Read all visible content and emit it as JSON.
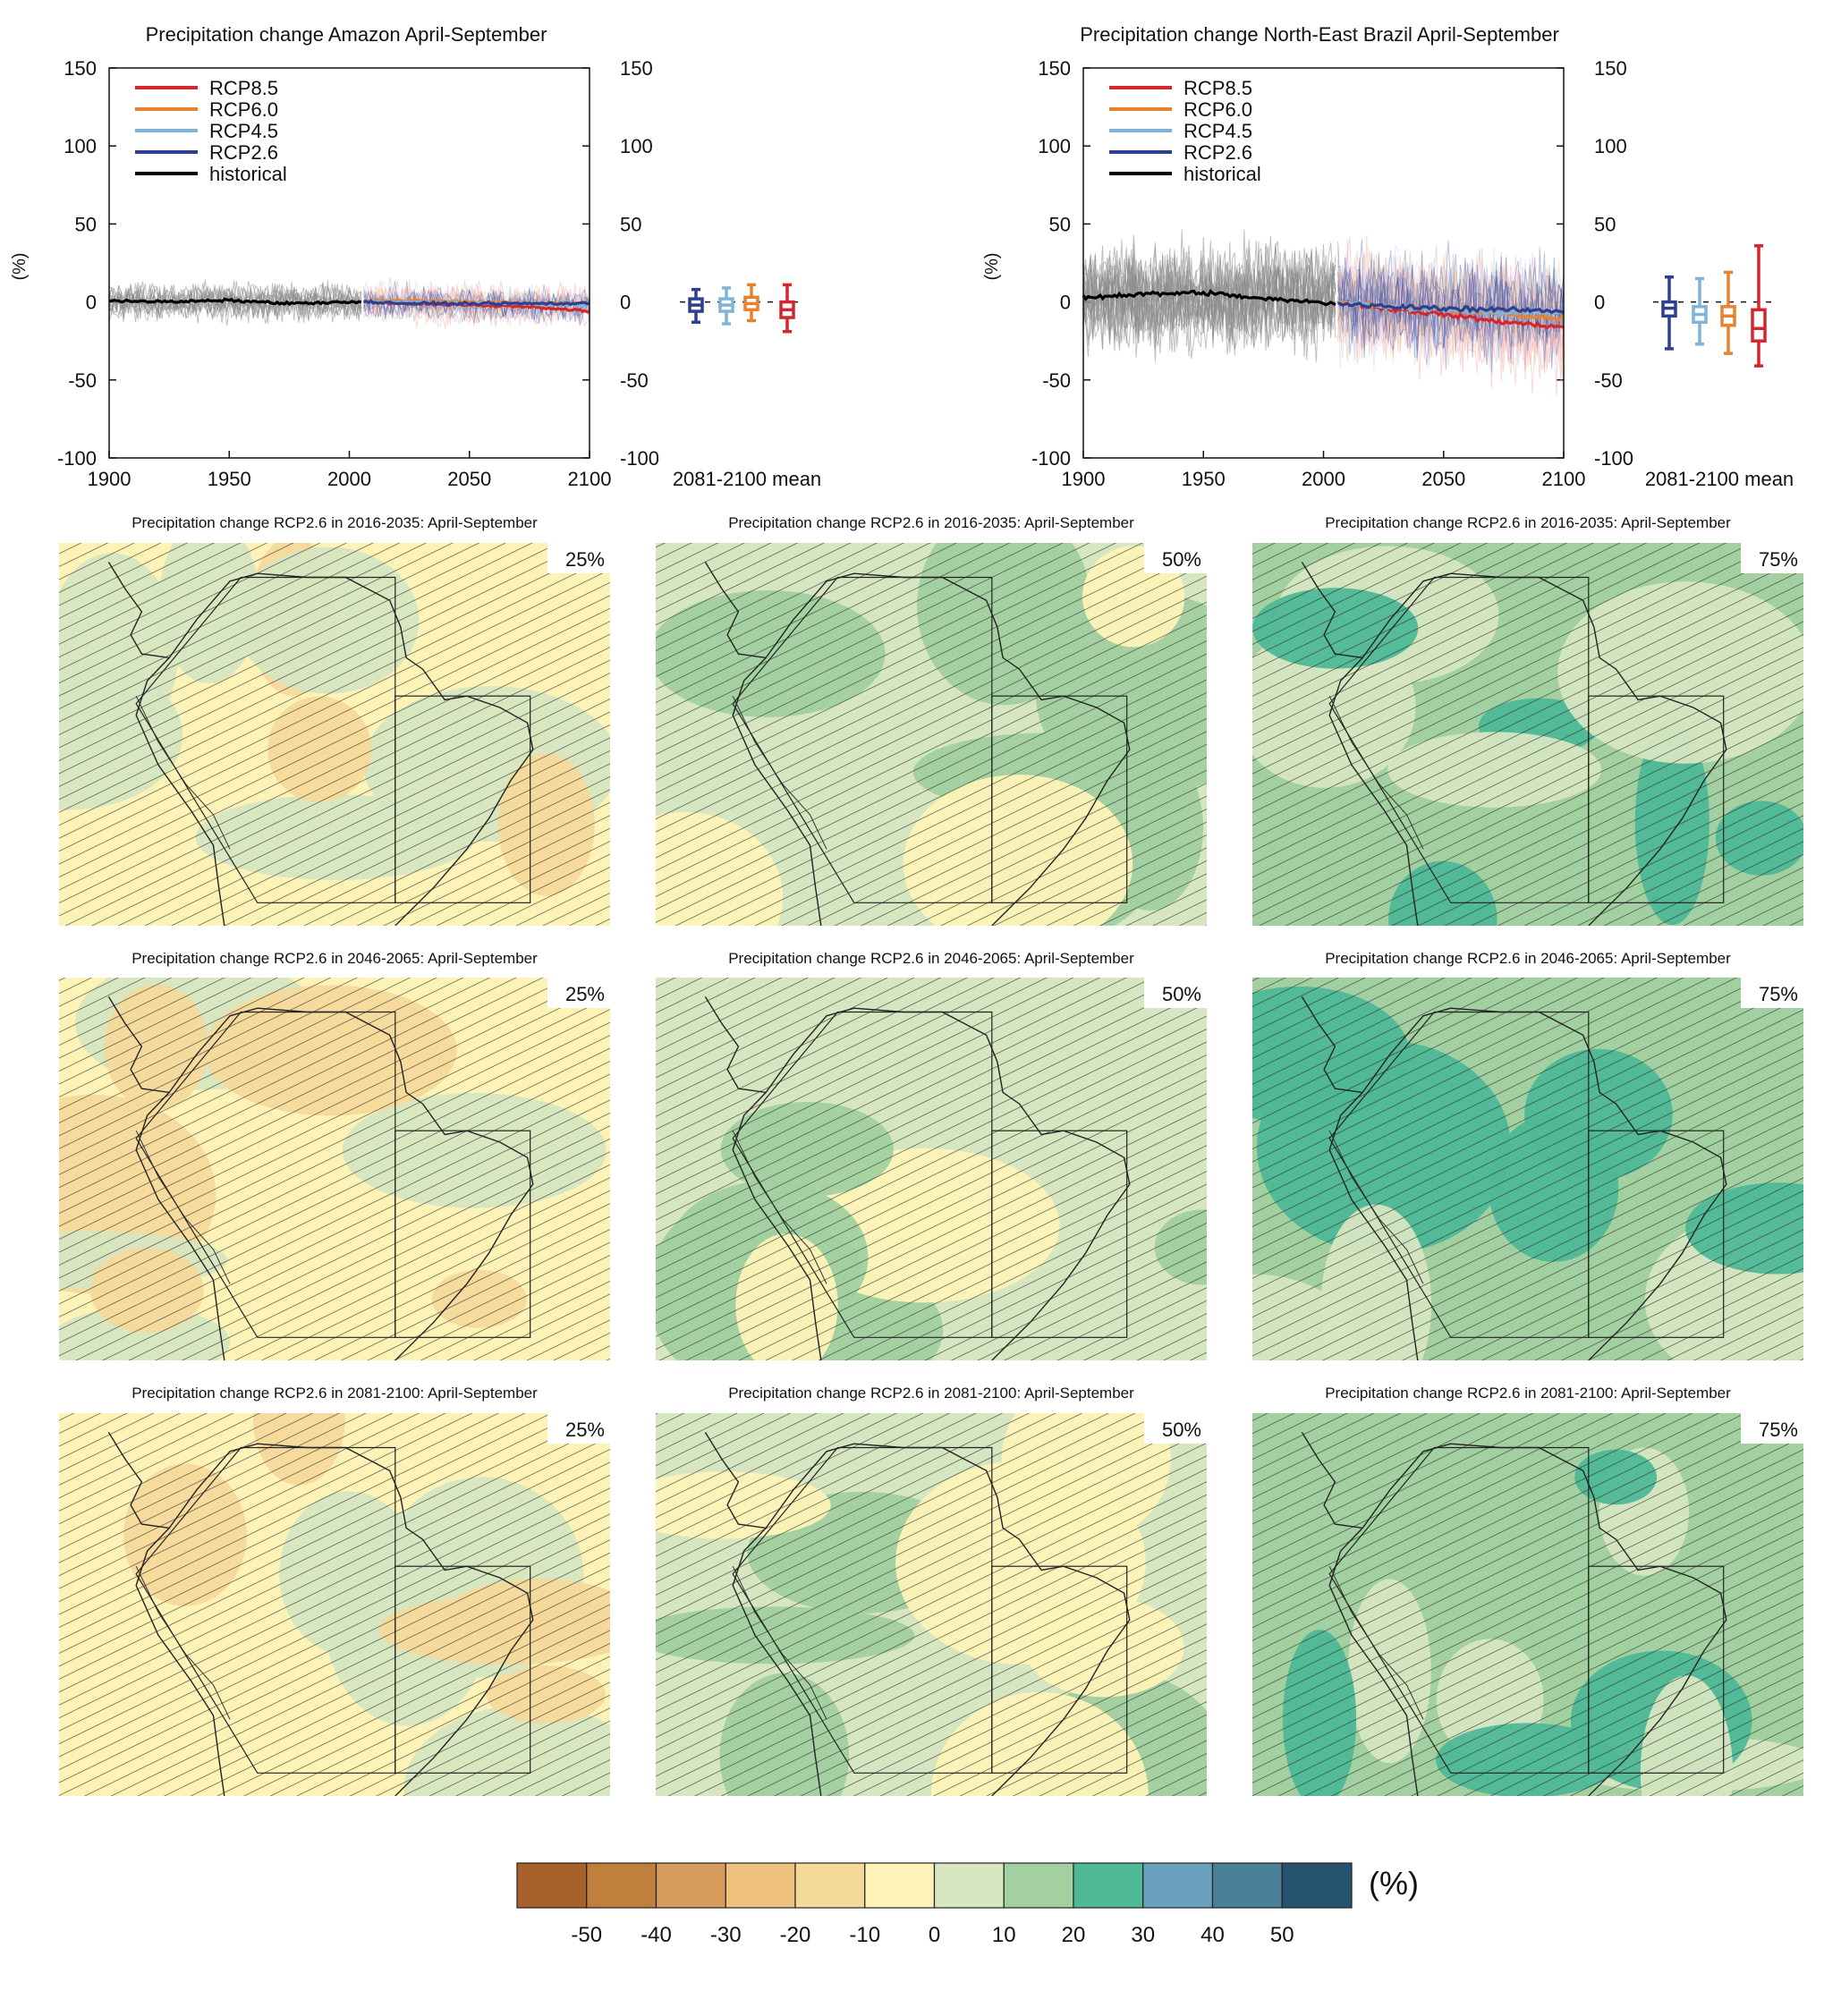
{
  "chart_data": [
    {
      "type": "line",
      "id": "ts_amazon",
      "title": "Precipitation change Amazon April-September",
      "ylabel": "(%)",
      "xlim": [
        1900,
        2100
      ],
      "ylim": [
        -100,
        150
      ],
      "x_ticks": [
        "1900",
        "1950",
        "2000",
        "2050",
        "2100"
      ],
      "y_ticks": [
        "150",
        "100",
        "50",
        "0",
        "-50",
        "-100"
      ],
      "legend_position": "top-left",
      "series": [
        {
          "name": "RCP8.5",
          "color": "#d7262b",
          "x": [
            2006,
            2025,
            2050,
            2075,
            2100
          ],
          "values": [
            0,
            -1,
            -2,
            -3,
            -6
          ]
        },
        {
          "name": "RCP6.0",
          "color": "#e8822f",
          "x": [
            2006,
            2025,
            2050,
            2075,
            2100
          ],
          "values": [
            0,
            1,
            0,
            -1,
            -1
          ]
        },
        {
          "name": "RCP4.5",
          "color": "#7fb3d8",
          "x": [
            2006,
            2025,
            2050,
            2075,
            2100
          ],
          "values": [
            0,
            0,
            -1,
            -1,
            -2
          ]
        },
        {
          "name": "RCP2.6",
          "color": "#2f3f8f",
          "x": [
            2006,
            2025,
            2050,
            2075,
            2100
          ],
          "values": [
            0,
            -1,
            -1,
            -1,
            -1
          ]
        },
        {
          "name": "historical",
          "color": "#000000",
          "x": [
            1900,
            1925,
            1950,
            1975,
            2005
          ],
          "values": [
            1,
            0,
            1,
            -1,
            0
          ]
        }
      ],
      "box_label": "2081-2100 mean",
      "boxes": [
        {
          "name": "RCP2.6",
          "color": "#2f3f8f",
          "whisker": [
            -13,
            8
          ],
          "box": [
            -6,
            2
          ],
          "median": -2
        },
        {
          "name": "RCP4.5",
          "color": "#7fb3d8",
          "whisker": [
            -14,
            9
          ],
          "box": [
            -6,
            2
          ],
          "median": -2
        },
        {
          "name": "RCP6.0",
          "color": "#e8822f",
          "whisker": [
            -12,
            11
          ],
          "box": [
            -5,
            3
          ],
          "median": -1
        },
        {
          "name": "RCP8.5",
          "color": "#d7262b",
          "whisker": [
            -19,
            11
          ],
          "box": [
            -10,
            0
          ],
          "median": -5
        }
      ]
    },
    {
      "type": "line",
      "id": "ts_nebrazil",
      "title": "Precipitation change North-East Brazil April-September",
      "ylabel": "(%)",
      "xlim": [
        1900,
        2100
      ],
      "ylim": [
        -100,
        150
      ],
      "x_ticks": [
        "1900",
        "1950",
        "2000",
        "2050",
        "2100"
      ],
      "y_ticks": [
        "150",
        "100",
        "50",
        "0",
        "-50",
        "-100"
      ],
      "legend_position": "top-left",
      "series": [
        {
          "name": "RCP8.5",
          "color": "#d7262b",
          "x": [
            2006,
            2025,
            2050,
            2075,
            2100
          ],
          "values": [
            0,
            -4,
            -8,
            -13,
            -16
          ]
        },
        {
          "name": "RCP6.0",
          "color": "#e8822f",
          "x": [
            2006,
            2025,
            2050,
            2075,
            2100
          ],
          "values": [
            0,
            -3,
            -5,
            -8,
            -11
          ]
        },
        {
          "name": "RCP4.5",
          "color": "#7fb3d8",
          "x": [
            2006,
            2025,
            2050,
            2075,
            2100
          ],
          "values": [
            0,
            -3,
            -5,
            -7,
            -7
          ]
        },
        {
          "name": "RCP2.6",
          "color": "#2f3f8f",
          "x": [
            2006,
            2025,
            2050,
            2075,
            2100
          ],
          "values": [
            -1,
            -3,
            -4,
            -5,
            -6
          ]
        },
        {
          "name": "historical",
          "color": "#000000",
          "x": [
            1900,
            1925,
            1950,
            1975,
            2005
          ],
          "values": [
            3,
            5,
            6,
            2,
            -1
          ]
        }
      ],
      "box_label": "2081-2100 mean",
      "boxes": [
        {
          "name": "RCP2.6",
          "color": "#2f3f8f",
          "whisker": [
            -30,
            16
          ],
          "box": [
            -9,
            0
          ],
          "median": -4
        },
        {
          "name": "RCP4.5",
          "color": "#7fb3d8",
          "whisker": [
            -27,
            15
          ],
          "box": [
            -13,
            -3
          ],
          "median": -8
        },
        {
          "name": "RCP6.0",
          "color": "#e8822f",
          "whisker": [
            -33,
            19
          ],
          "box": [
            -15,
            -3
          ],
          "median": -9
        },
        {
          "name": "RCP8.5",
          "color": "#d7262b",
          "whisker": [
            -41,
            36
          ],
          "box": [
            -25,
            -5
          ],
          "median": -17
        }
      ]
    },
    {
      "type": "heatmap",
      "id": "maps",
      "note_text": "",
      "panels": [
        {
          "title": "Precipitation change RCP2.6 in 2016-2035: April-September",
          "percentile": "25%",
          "dominant_change": -10
        },
        {
          "title": "Precipitation change RCP2.6 in 2016-2035: April-September",
          "percentile": "50%",
          "dominant_change": 0
        },
        {
          "title": "Precipitation change RCP2.6 in 2016-2035: April-September",
          "percentile": "75%",
          "dominant_change": 10
        },
        {
          "title": "Precipitation change RCP2.6 in 2046-2065: April-September",
          "percentile": "25%",
          "dominant_change": -10
        },
        {
          "title": "Precipitation change RCP2.6 in 2046-2065: April-September",
          "percentile": "50%",
          "dominant_change": 0
        },
        {
          "title": "Precipitation change RCP2.6 in 2046-2065: April-September",
          "percentile": "75%",
          "dominant_change": 10
        },
        {
          "title": "Precipitation change RCP2.6 in 2081-2100: April-September",
          "percentile": "25%",
          "dominant_change": -10
        },
        {
          "title": "Precipitation change RCP2.6 in 2081-2100: April-September",
          "percentile": "50%",
          "dominant_change": 0
        },
        {
          "title": "Precipitation change RCP2.6 in 2081-2100: April-September",
          "percentile": "75%",
          "dominant_change": 10
        }
      ],
      "colorbar": {
        "unit": "(%)",
        "colors": [
          "#a8612b",
          "#c17f3d",
          "#d79c5c",
          "#eec17c",
          "#f5d99a",
          "#fdf3b7",
          "#d6e6c0",
          "#a2d0a0",
          "#4fb897",
          "#6aa0bd",
          "#4a7f99",
          "#265470"
        ],
        "tick_labels": [
          "-50",
          "-40",
          "-30",
          "-20",
          "-10",
          "0",
          "10",
          "20",
          "30",
          "40",
          "50"
        ]
      }
    }
  ]
}
